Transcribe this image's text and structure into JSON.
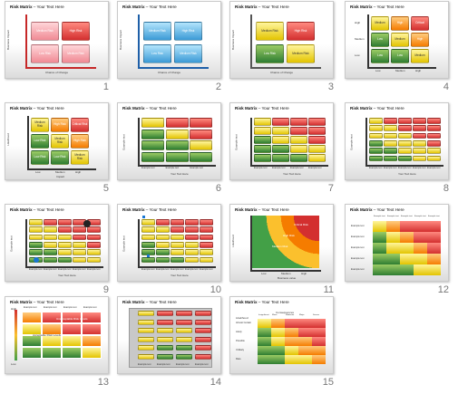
{
  "slides": [
    {
      "num": "1",
      "title_bold": "Risk Matrix",
      "title_rest": " – Your Text Here",
      "cells": [
        "Medium Risk",
        "High Risk",
        "Low Risk",
        "Medium Risk"
      ],
      "sub": "Text Impact",
      "x_axis": "Chance of Change",
      "y_axis": "Business Impact"
    },
    {
      "num": "2",
      "title_bold": "Risk Matrix",
      "title_rest": " – Your Text Here",
      "cells": [
        "Medium Risk",
        "High Risk",
        "Low Risk",
        "Medium Risk"
      ],
      "x_axis": "Chance of Change",
      "y_axis": "Business Impact"
    },
    {
      "num": "3",
      "title_bold": "Risk Matrix",
      "title_rest": " – Your Text Here",
      "cells": [
        "Medium Risk",
        "High Risk",
        "Low Risk",
        "Medium Risk"
      ],
      "x_axis": "Chance of Change",
      "y_axis": "Business Impact"
    },
    {
      "num": "4",
      "title_bold": "Risk Matrix",
      "title_rest": " – Your Text Here",
      "cells": [
        "Medium",
        "High",
        "Critical",
        "Low",
        "Medium",
        "High",
        "Low",
        "Low",
        "Medium"
      ],
      "rows": [
        "High",
        "Medium",
        "Low"
      ],
      "cols": [
        "Low",
        "Medium",
        "High"
      ]
    },
    {
      "num": "5",
      "title_bold": "Risk Matrix",
      "title_rest": " – Your Text Here",
      "cells": [
        "Medium Risk",
        "High Risk",
        "Critical Risk",
        "Low Risk",
        "Medium Risk",
        "High Risk",
        "Low Risk",
        "Low Risk",
        "Medium Risk"
      ],
      "x_axis": "Impact",
      "y_axis": "Likelihood",
      "cols": [
        "Low",
        "Medium",
        "High"
      ]
    },
    {
      "num": "6",
      "title_bold": "Risk Matrix",
      "title_rest": " – Your Text Here",
      "x_axis": "Your Text Here",
      "y_axis": "Example text",
      "cols": [
        "Example text",
        "Example text",
        "Example text"
      ]
    },
    {
      "num": "7",
      "title_bold": "Risk Matrix",
      "title_rest": " – Your Text Here",
      "x_axis": "Your Text Here",
      "y_axis": "Example text",
      "cols": [
        "Example text",
        "Example text",
        "Example text",
        "Example text"
      ]
    },
    {
      "num": "8",
      "title_bold": "Risk Matrix",
      "title_rest": " – Your Text Here",
      "x_axis": "Your Text Here",
      "y_axis": "Example text",
      "cols": [
        "Example text",
        "Example text",
        "Example text",
        "Example text",
        "Example text"
      ]
    },
    {
      "num": "9",
      "title_bold": "Risk Matrix",
      "title_rest": " – Your Text Here",
      "x_axis": "Your Text Here",
      "y_axis": "Example text",
      "cols": [
        "Example text",
        "Example text",
        "Example text",
        "Example text",
        "Example text"
      ]
    },
    {
      "num": "10",
      "title_bold": "Risk Matrix",
      "title_rest": " – Your Text Here",
      "x_axis": "Your Text Here",
      "y_axis": "Example text",
      "cols": [
        "Example text",
        "Example text",
        "Example text",
        "Example text",
        "Example text"
      ]
    },
    {
      "num": "11",
      "title_bold": "Risk Matrix",
      "title_rest": " – Your Text Here",
      "x_axis": "Business value",
      "y_axis": "Likelihood",
      "cols": [
        "Low",
        "Medium",
        "High"
      ],
      "bands": [
        "Critical Risk",
        "High Risk",
        "Medium Risk"
      ]
    },
    {
      "num": "12",
      "title_bold": "Risk Matrix",
      "title_rest": " – Your Text Here",
      "rows": [
        "Example text",
        "Example text",
        "Example text",
        "Example text",
        "Example text"
      ],
      "cols": [
        "Example text",
        "Example text",
        "Example text",
        "Example text",
        "Example text"
      ]
    },
    {
      "num": "13",
      "title_bold": "Risk Matrix",
      "title_rest": " – Your Text Here",
      "cols": [
        "Example text",
        "Example text",
        "Example text",
        "Example text"
      ],
      "bands": [
        "Unacceptable Risk Levels",
        "Acceptable Risk Levels"
      ],
      "scale": [
        "High",
        "Low"
      ]
    },
    {
      "num": "14",
      "title_bold": "Risk Matrix",
      "title_rest": " – Your Text Here",
      "cols": [
        "Example text",
        "Example text",
        "Example text",
        "Example text"
      ]
    },
    {
      "num": "15",
      "title_bold": "Risk Matrix",
      "title_rest": " – Your Text Here",
      "header": "Consequences",
      "y_label": "Likelihood",
      "rows": [
        "Almost Certain",
        "Likely",
        "Possible",
        "Unlikely",
        "Rare"
      ],
      "cols": [
        "Insignificant",
        "Minor",
        "Moderate",
        "Major",
        "Severe"
      ]
    }
  ]
}
